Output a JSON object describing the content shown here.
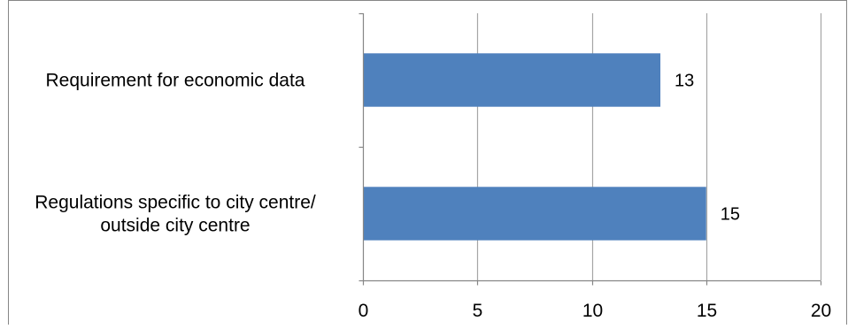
{
  "chart_data": {
    "type": "bar",
    "orientation": "horizontal",
    "categories": [
      [
        "Requirement for economic data"
      ],
      [
        "Regulations specific to city centre/",
        "outside city centre"
      ]
    ],
    "values": [
      13,
      15
    ],
    "data_labels": [
      "13",
      "15"
    ],
    "title": "",
    "xlabel": "",
    "ylabel": "",
    "xlim": [
      0,
      20
    ],
    "x_ticks": [
      0,
      5,
      10,
      15,
      20
    ],
    "x_tick_labels": [
      "0",
      "5",
      "10",
      "15",
      "20"
    ],
    "grid": "vertical",
    "legend": "none"
  },
  "colors": {
    "bar": "#4f81bd",
    "grid": "#a6a6a6",
    "axis": "#868686",
    "border": "#868686"
  }
}
